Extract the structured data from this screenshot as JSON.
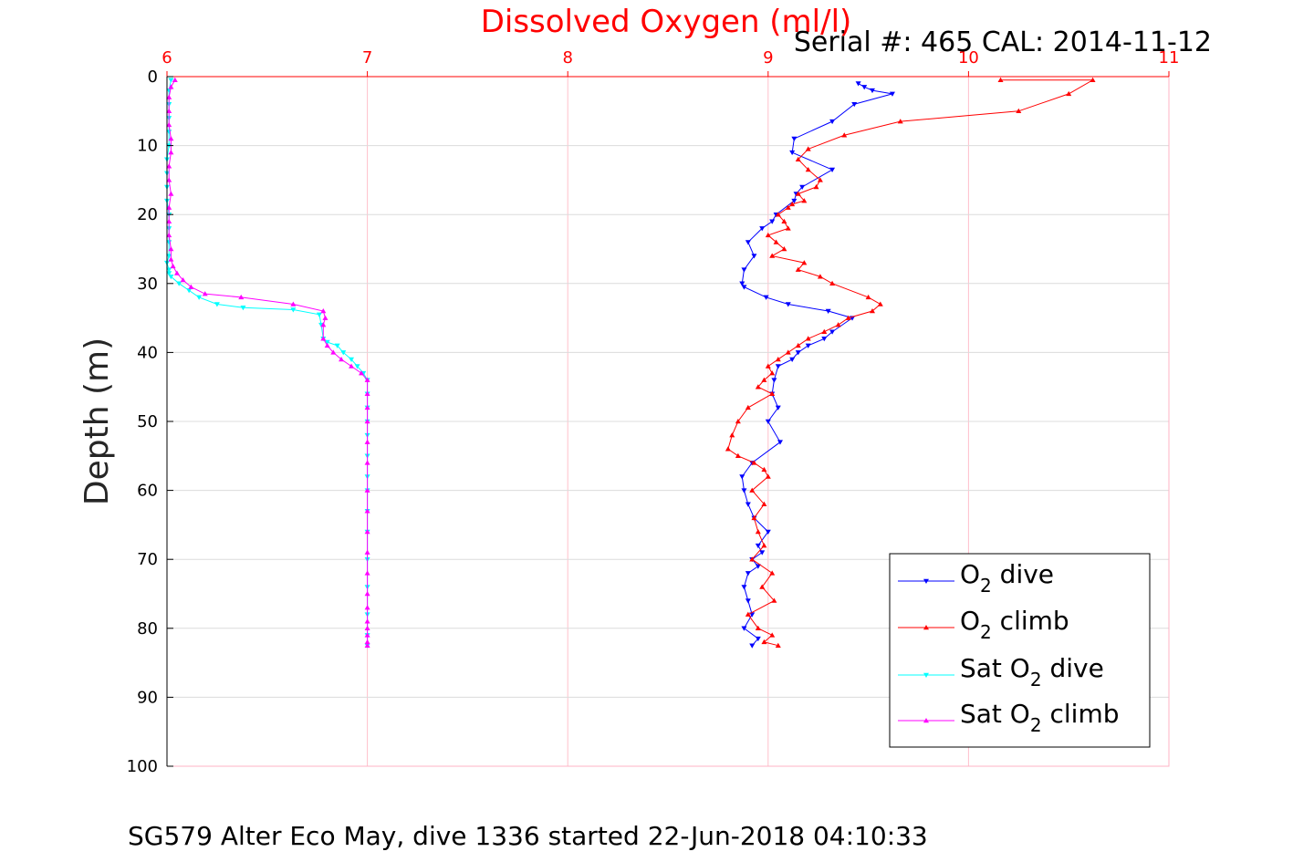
{
  "chart_data": {
    "type": "line",
    "title": "Dissolved Oxygen (ml/l)",
    "subtitle": "Serial #: 465  CAL: 2014-11-12",
    "caption": "SG579 Alter Eco May, dive 1336 started 22-Jun-2018 04:10:33",
    "xlabel": "",
    "ylabel": "Depth (m)",
    "xlim": [
      6,
      11
    ],
    "ylim": [
      0,
      100
    ],
    "y_reversed": true,
    "x_axis_position": "top",
    "x_ticks": [
      "6",
      "7",
      "8",
      "9",
      "10",
      "11"
    ],
    "y_ticks": [
      "0",
      "10",
      "20",
      "30",
      "40",
      "50",
      "60",
      "70",
      "80",
      "90",
      "100"
    ],
    "grid": true,
    "legend_position": "bottom-right",
    "series": [
      {
        "name_parts": [
          "O",
          "2",
          " dive"
        ],
        "color": "#0000ff",
        "marker": "triangle-down",
        "x": [
          9.45,
          9.48,
          9.52,
          9.62,
          9.43,
          9.32,
          9.13,
          9.12,
          9.32,
          9.17,
          9.14,
          9.13,
          9.04,
          9.02,
          8.97,
          8.9,
          8.93,
          8.88,
          8.87,
          8.88,
          8.99,
          9.1,
          9.3,
          9.42,
          9.32,
          9.28,
          9.2,
          9.15,
          9.12,
          9.05,
          9.03,
          9.02,
          9.05,
          9.0,
          9.06,
          8.92,
          8.87,
          8.88,
          8.9,
          8.93,
          9.0,
          8.95,
          8.97,
          8.92,
          8.95,
          8.9,
          8.88,
          8.9,
          8.92,
          8.88,
          8.95,
          8.92
        ],
        "y": [
          1,
          1.5,
          2,
          2.5,
          4,
          6.5,
          9,
          11,
          13.5,
          16,
          17,
          18,
          20,
          21,
          22,
          24,
          26,
          28,
          30,
          30.5,
          32,
          33,
          34,
          35,
          37,
          38,
          39,
          40,
          41,
          42,
          44,
          46,
          48,
          50,
          53,
          56,
          58,
          60,
          62,
          64,
          66,
          68,
          69,
          70,
          71,
          72,
          74,
          76,
          78,
          80,
          81.5,
          82.5
        ]
      },
      {
        "name_parts": [
          "O",
          "2",
          " climb"
        ],
        "color": "#ff0000",
        "marker": "triangle-up",
        "x": [
          10.16,
          10.62,
          10.5,
          10.25,
          9.66,
          9.38,
          9.2,
          9.15,
          9.2,
          9.26,
          9.24,
          9.15,
          9.18,
          9.12,
          9.1,
          9.05,
          9.08,
          9.1,
          9.0,
          9.04,
          9.08,
          9.02,
          9.18,
          9.15,
          9.26,
          9.32,
          9.5,
          9.56,
          9.52,
          9.4,
          9.35,
          9.28,
          9.2,
          9.15,
          9.1,
          9.05,
          9.0,
          9.02,
          8.98,
          8.95,
          9.02,
          8.9,
          8.85,
          8.82,
          8.8,
          8.85,
          8.93,
          8.98,
          9.0,
          8.92,
          8.98,
          8.93,
          8.95,
          8.98,
          8.92,
          9.02,
          8.97,
          9.03,
          8.9,
          8.95,
          9.02,
          8.98,
          9.05
        ],
        "y": [
          0.5,
          0.5,
          2.5,
          5,
          6.5,
          8.5,
          10.5,
          12,
          13.5,
          15,
          16,
          17,
          18,
          18.5,
          19,
          20,
          21,
          22,
          23,
          24,
          25,
          26,
          27,
          28,
          29,
          30,
          32,
          33,
          34,
          35,
          36,
          37,
          38,
          39,
          40,
          41,
          42,
          43,
          44,
          45,
          46,
          48,
          50,
          52,
          54,
          55,
          56,
          57,
          58,
          60,
          62,
          64,
          66,
          68,
          70,
          72,
          74,
          76,
          78,
          80,
          81,
          82,
          82.5
        ]
      },
      {
        "name_parts": [
          "Sat O",
          "2",
          " dive"
        ],
        "color": "#00ffff",
        "marker": "triangle-down",
        "x": [
          6.02,
          6.01,
          6.01,
          6.01,
          6.01,
          6.01,
          6.0,
          6.0,
          6.0,
          6.0,
          6.01,
          6.01,
          6.01,
          6.01,
          6.0,
          6.01,
          6.01,
          6.02,
          6.06,
          6.11,
          6.16,
          6.25,
          6.38,
          6.63,
          6.76,
          6.77,
          6.78,
          6.8,
          6.85,
          6.88,
          6.92,
          6.95,
          6.98,
          7.0,
          7.0,
          7.0,
          7.0,
          7.0,
          7.0,
          7.0,
          7.0,
          7.0,
          7.0,
          7.0,
          7.0,
          7.0,
          7.0,
          7.0
        ],
        "y": [
          0.5,
          2,
          4,
          6,
          8,
          10,
          12,
          14,
          16,
          18,
          20,
          22,
          24,
          26,
          27,
          28,
          28.5,
          29,
          30,
          31,
          32,
          33,
          33.5,
          33.8,
          34.5,
          36,
          38,
          38.5,
          39,
          40,
          41,
          42,
          43,
          44,
          46,
          48,
          50,
          52,
          55,
          58,
          60,
          63,
          66,
          70,
          74,
          78,
          81,
          82.5
        ]
      },
      {
        "name_parts": [
          "Sat O",
          "2",
          " climb"
        ],
        "color": "#ff00ff",
        "marker": "triangle-up",
        "x": [
          6.04,
          6.02,
          6.01,
          6.01,
          6.01,
          6.02,
          6.02,
          6.01,
          6.01,
          6.02,
          6.01,
          6.01,
          6.01,
          6.02,
          6.02,
          6.03,
          6.05,
          6.08,
          6.12,
          6.19,
          6.37,
          6.63,
          6.78,
          6.79,
          6.78,
          6.78,
          6.8,
          6.83,
          6.87,
          6.92,
          6.97,
          7.0,
          7.0,
          7.0,
          7.0,
          7.0,
          7.0,
          7.0,
          7.0,
          7.0,
          7.0,
          7.0,
          7.0,
          7.0,
          7.0,
          7.0,
          7.0,
          7.0,
          7.0
        ],
        "y": [
          0.5,
          1.5,
          3,
          5,
          7,
          9,
          11,
          13,
          15,
          17,
          19,
          21,
          23,
          25,
          26.5,
          27.5,
          28.5,
          29.5,
          30.5,
          31.5,
          32,
          33,
          34,
          35,
          36,
          38,
          39,
          40,
          41,
          42,
          43,
          44,
          46,
          48,
          50,
          53,
          56,
          60,
          63,
          66,
          69,
          72,
          75,
          77,
          79,
          80,
          81,
          82,
          82.5
        ]
      }
    ]
  }
}
